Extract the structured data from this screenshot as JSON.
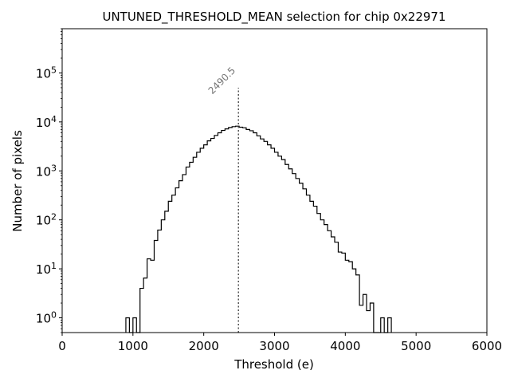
{
  "chart_data": {
    "type": "histogram",
    "title": "UNTUNED_THRESHOLD_MEAN selection for chip 0x22971",
    "xlabel": "Threshold (e)",
    "ylabel": "Number of pixels",
    "xlim": [
      0,
      6000
    ],
    "ylim": [
      0.5,
      800000
    ],
    "yscale": "log",
    "grid": false,
    "xticks": [
      {
        "value": 0,
        "label": "0"
      },
      {
        "value": 1000,
        "label": "1000"
      },
      {
        "value": 2000,
        "label": "2000"
      },
      {
        "value": 3000,
        "label": "3000"
      },
      {
        "value": 4000,
        "label": "4000"
      },
      {
        "value": 5000,
        "label": "5000"
      },
      {
        "value": 6000,
        "label": "6000"
      }
    ],
    "yticks": [
      {
        "value": 1,
        "base": "10",
        "exp": "0"
      },
      {
        "value": 10,
        "base": "10",
        "exp": "1"
      },
      {
        "value": 100,
        "base": "10",
        "exp": "2"
      },
      {
        "value": 1000,
        "base": "10",
        "exp": "3"
      },
      {
        "value": 10000,
        "base": "10",
        "exp": "4"
      },
      {
        "value": 100000,
        "base": "10",
        "exp": "5"
      }
    ],
    "histogram": {
      "bin_width": 50,
      "bins": [
        [
          900,
          1
        ],
        [
          950,
          0
        ],
        [
          1000,
          1
        ],
        [
          1050,
          0
        ],
        [
          1100,
          4
        ],
        [
          1150,
          6.5
        ],
        [
          1200,
          16
        ],
        [
          1250,
          15
        ],
        [
          1300,
          38
        ],
        [
          1350,
          62
        ],
        [
          1400,
          100
        ],
        [
          1450,
          150
        ],
        [
          1500,
          240
        ],
        [
          1550,
          320
        ],
        [
          1600,
          450
        ],
        [
          1650,
          630
        ],
        [
          1700,
          840
        ],
        [
          1750,
          1200
        ],
        [
          1800,
          1500
        ],
        [
          1850,
          1900
        ],
        [
          1900,
          2400
        ],
        [
          1950,
          2900
        ],
        [
          2000,
          3400
        ],
        [
          2050,
          4100
        ],
        [
          2100,
          4600
        ],
        [
          2150,
          5300
        ],
        [
          2200,
          6000
        ],
        [
          2250,
          6700
        ],
        [
          2300,
          7200
        ],
        [
          2350,
          7700
        ],
        [
          2400,
          8000
        ],
        [
          2450,
          8200
        ],
        [
          2500,
          7800
        ],
        [
          2550,
          7600
        ],
        [
          2600,
          7000
        ],
        [
          2650,
          6600
        ],
        [
          2700,
          6000
        ],
        [
          2750,
          5200
        ],
        [
          2800,
          4500
        ],
        [
          2850,
          4000
        ],
        [
          2900,
          3400
        ],
        [
          2950,
          2900
        ],
        [
          3000,
          2400
        ],
        [
          3050,
          2000
        ],
        [
          3100,
          1700
        ],
        [
          3150,
          1350
        ],
        [
          3200,
          1100
        ],
        [
          3250,
          880
        ],
        [
          3300,
          700
        ],
        [
          3350,
          560
        ],
        [
          3400,
          430
        ],
        [
          3450,
          320
        ],
        [
          3500,
          240
        ],
        [
          3550,
          190
        ],
        [
          3600,
          135
        ],
        [
          3650,
          100
        ],
        [
          3700,
          80
        ],
        [
          3750,
          60
        ],
        [
          3800,
          45
        ],
        [
          3850,
          35
        ],
        [
          3900,
          22
        ],
        [
          3950,
          21
        ],
        [
          4000,
          15
        ],
        [
          4050,
          14
        ],
        [
          4100,
          10
        ],
        [
          4150,
          7.5
        ],
        [
          4200,
          1.8
        ],
        [
          4250,
          3
        ],
        [
          4300,
          1.4
        ],
        [
          4350,
          2
        ],
        [
          4400,
          0
        ],
        [
          4450,
          0
        ],
        [
          4500,
          1
        ],
        [
          4550,
          0
        ],
        [
          4600,
          1
        ]
      ]
    },
    "annotation": {
      "value": 2490.5,
      "label": "2490.5",
      "line_top": 50000
    }
  }
}
